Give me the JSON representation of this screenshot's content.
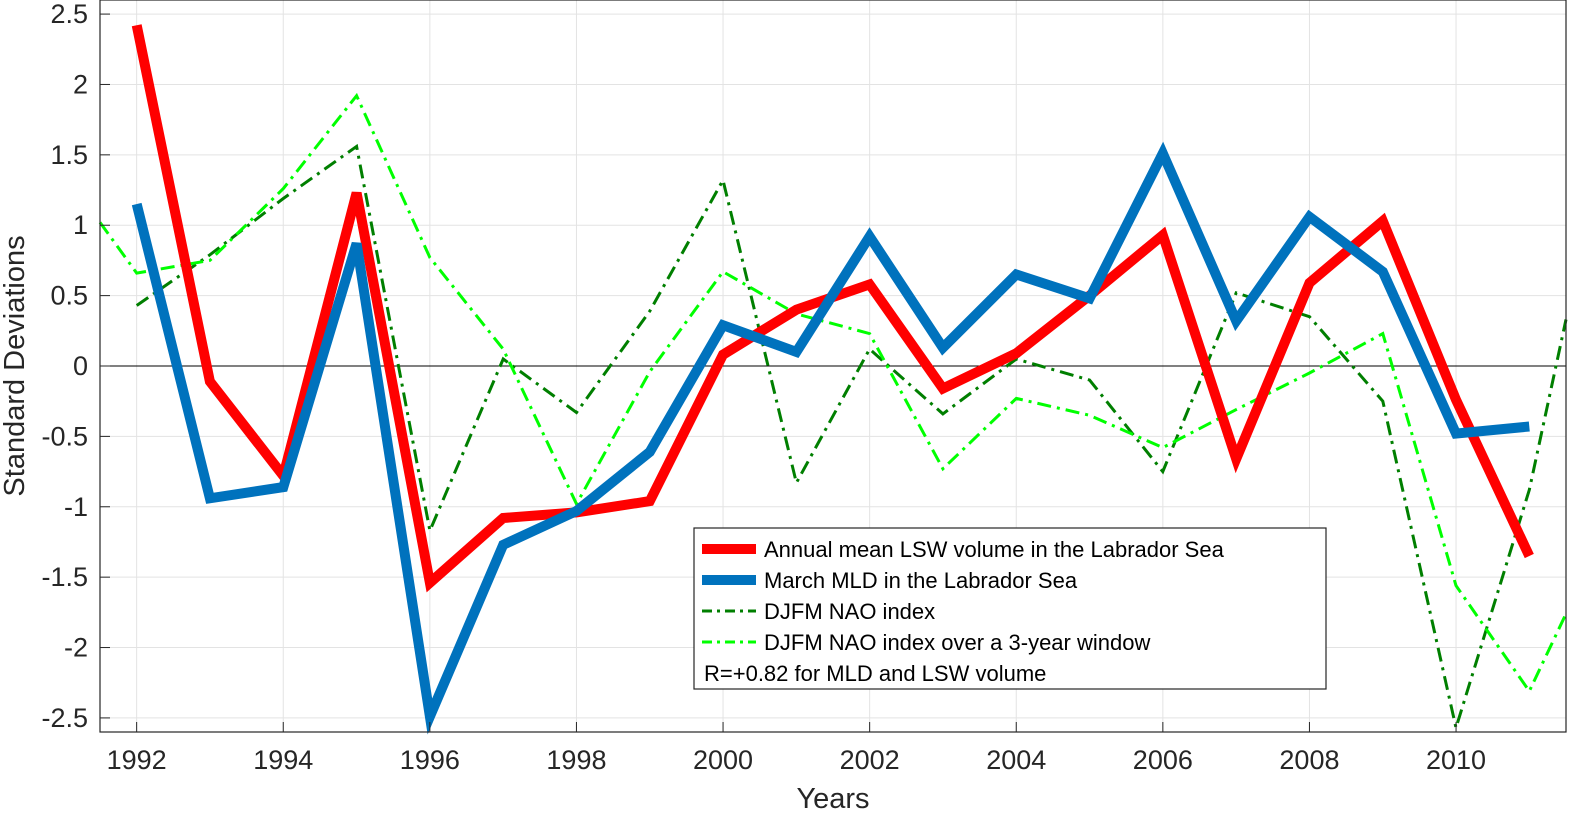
{
  "chart_data": {
    "type": "line",
    "title": "",
    "xlabel": "Years",
    "ylabel": "Standard Deviations",
    "xlim": [
      1991.5,
      2011.5
    ],
    "ylim": [
      -2.6,
      2.6
    ],
    "x_ticks": [
      1992,
      1994,
      1996,
      1998,
      2000,
      2002,
      2004,
      2006,
      2008,
      2010
    ],
    "y_ticks": [
      2.5,
      2,
      1.5,
      1,
      0.5,
      0,
      -0.5,
      -1,
      -1.5,
      -2,
      -2.5
    ],
    "y_tick_labels": [
      "2.5",
      "2",
      "1.5",
      "1",
      "0.5",
      "0",
      "-0.5",
      "-1",
      "-1.5",
      "-2",
      "-2.5"
    ],
    "grid": true,
    "zero_line": true,
    "legend_position": "bottom-center",
    "legend_note": "R=+0.82 for MLD and LSW volume",
    "series": [
      {
        "name": "Annual mean LSW volume in the Labrador Sea",
        "color": "#ff0000",
        "style": "solid-thick",
        "x": [
          1992,
          1993,
          1994,
          1995,
          1996,
          1997,
          1998,
          1999,
          2000,
          2001,
          2002,
          2003,
          2004,
          2005,
          2006,
          2007,
          2008,
          2009,
          2010,
          2011
        ],
        "values": [
          2.42,
          -0.11,
          -0.78,
          1.23,
          -1.54,
          -1.08,
          -1.04,
          -0.96,
          0.08,
          0.4,
          0.58,
          -0.16,
          0.09,
          0.5,
          0.93,
          -0.66,
          0.59,
          1.03,
          -0.24,
          -1.35
        ]
      },
      {
        "name": "March MLD in the Labrador Sea",
        "color": "#0072bd",
        "style": "solid-thick",
        "x": [
          1992,
          1993,
          1994,
          1995,
          1996,
          1997,
          1998,
          1999,
          2000,
          2001,
          2002,
          2003,
          2004,
          2005,
          2006,
          2007,
          2008,
          2009,
          2010,
          2011
        ],
        "values": [
          1.15,
          -0.94,
          -0.86,
          0.87,
          -2.49,
          -1.27,
          -1.03,
          -0.61,
          0.29,
          0.1,
          0.92,
          0.13,
          0.65,
          0.48,
          1.51,
          0.32,
          1.06,
          0.67,
          -0.48,
          -0.43
        ]
      },
      {
        "name": "DJFM NAO index",
        "color": "#007f00",
        "style": "dashdot",
        "x": [
          1992,
          1993,
          1994,
          1995,
          1996,
          1997,
          1998,
          1999,
          2000,
          2001,
          2002,
          2003,
          2004,
          2005,
          2006,
          2007,
          2008,
          2009,
          2010,
          2011,
          2011.5
        ],
        "values": [
          0.43,
          0.79,
          1.19,
          1.56,
          -1.17,
          0.05,
          -0.33,
          0.39,
          1.32,
          -0.83,
          0.12,
          -0.34,
          0.05,
          -0.1,
          -0.75,
          0.52,
          0.35,
          -0.25,
          -2.57,
          -0.88,
          0.33
        ]
      },
      {
        "name": "DJFM NAO index over a 3-year window",
        "color": "#00ff00",
        "style": "dashdot",
        "x": [
          1991.5,
          1992,
          1993,
          1994,
          1995,
          1996,
          1997,
          1998,
          1999,
          2000,
          2001,
          2002,
          2003,
          2004,
          2005,
          2006,
          2007,
          2008,
          2009,
          2010,
          2011,
          2011.5
        ],
        "values": [
          1.02,
          0.66,
          0.75,
          1.26,
          1.92,
          0.77,
          0.12,
          -0.98,
          -0.04,
          0.67,
          0.37,
          0.23,
          -0.73,
          -0.23,
          -0.35,
          -0.58,
          -0.31,
          -0.05,
          0.23,
          -1.56,
          -2.31,
          -1.76
        ]
      }
    ]
  }
}
